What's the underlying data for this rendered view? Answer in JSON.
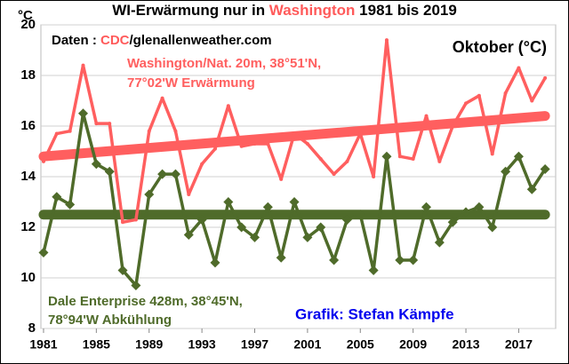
{
  "chart_data": {
    "type": "line",
    "title_parts": [
      {
        "text": "WI-Erwärmung nur in ",
        "color": "#000000"
      },
      {
        "text": "Washington",
        "color": "#ff5a5a"
      },
      {
        "text": " 1981 bis 2019",
        "color": "#000000"
      }
    ],
    "y_unit": "°C",
    "x": [
      1981,
      1982,
      1983,
      1984,
      1985,
      1986,
      1987,
      1988,
      1989,
      1990,
      1991,
      1992,
      1993,
      1994,
      1995,
      1996,
      1997,
      1998,
      1999,
      2000,
      2001,
      2002,
      2003,
      2004,
      2005,
      2006,
      2007,
      2008,
      2009,
      2010,
      2011,
      2012,
      2013,
      2014,
      2015,
      2016,
      2017,
      2018,
      2019
    ],
    "series": [
      {
        "color": "#ff5f5f",
        "values": [
          14.6,
          15.7,
          15.8,
          18.4,
          16.1,
          16.1,
          12.2,
          12.3,
          15.8,
          17.1,
          15.8,
          13.3,
          14.5,
          15.1,
          16.8,
          15.2,
          15.3,
          15.3,
          13.9,
          15.7,
          15.3,
          14.7,
          14.1,
          14.6,
          15.7,
          14.0,
          19.4,
          14.8,
          14.7,
          16.4,
          14.6,
          16.0,
          16.9,
          17.2,
          14.9,
          17.3,
          18.3,
          17.0,
          17.9
        ],
        "trend": [
          14.8,
          16.4
        ]
      },
      {
        "color": "#4f6b2a",
        "values": [
          11.0,
          13.2,
          12.9,
          16.5,
          14.5,
          14.2,
          10.3,
          9.7,
          13.3,
          14.1,
          14.1,
          11.7,
          12.3,
          10.6,
          13.0,
          12.0,
          11.6,
          12.8,
          10.8,
          13.0,
          11.6,
          12.0,
          10.7,
          12.3,
          12.5,
          10.3,
          14.8,
          10.7,
          10.7,
          12.8,
          11.4,
          12.2,
          12.6,
          12.8,
          12.0,
          14.2,
          14.8,
          13.5,
          14.3
        ],
        "trend": [
          12.5,
          12.5
        ]
      }
    ],
    "xlim": [
      1980.8,
      2019.8
    ],
    "ylim": [
      8,
      20
    ],
    "xticks": [
      1981,
      1985,
      1989,
      1993,
      1997,
      2001,
      2005,
      2009,
      2013,
      2017
    ],
    "yticks": [
      8,
      10,
      12,
      14,
      16,
      18,
      20
    ],
    "grid": true,
    "annotations": {
      "source_label": "Daten : ",
      "source_org": "CDC",
      "source_site": "/glenallenweather.com",
      "month": "Oktober (°C)",
      "station1_line1": "Washington/Nat. 20m, 38°51'N,",
      "station1_line2": "77°02'W Erwärmung",
      "station2_line1": "Dale Enterprise 428m, 38°45'N,",
      "station2_line2": "78°94'W  Abkühlung",
      "credit": "Grafik: Stefan Kämpfe"
    }
  }
}
